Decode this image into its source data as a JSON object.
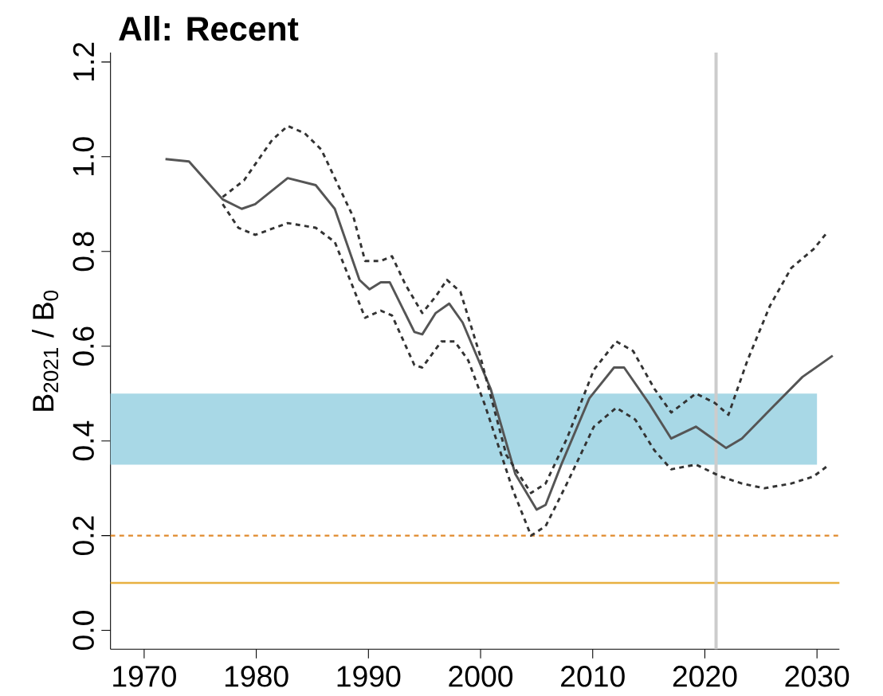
{
  "chart_data": {
    "type": "line",
    "title": "All: Recent",
    "ylabel": "B$_{2021}$ / B$_{0}$",
    "xlim": [
      1967,
      2032
    ],
    "ylim": [
      -0.04,
      1.22
    ],
    "xticks": [
      1970,
      1980,
      1990,
      2000,
      2010,
      2020,
      2030
    ],
    "yticks": [
      {
        "value": 0,
        "label": "0.0"
      },
      {
        "value": 0.2,
        "label": "0.2"
      },
      {
        "value": 0.4,
        "label": "0.4"
      },
      {
        "value": 0.6,
        "label": "0.6"
      },
      {
        "value": 0.8,
        "label": "0.8"
      },
      {
        "value": 1.0,
        "label": "1.0"
      },
      {
        "value": 1.2,
        "label": "1.2"
      }
    ],
    "grid": false,
    "series": [
      {
        "color": "#555555",
        "line_style": "solid",
        "x": [
          1971.9,
          1974,
          1977,
          1978.7,
          1979.9,
          1982.8,
          1985.3,
          1987,
          1989.2,
          1990.1,
          1991.1,
          1991.9,
          1994.1,
          1994.8,
          1996,
          1997.2,
          1998.4,
          2000.9,
          2003.1,
          2005,
          2005.8,
          2007.2,
          2009.7,
          2011.9,
          2012.8,
          2015,
          2017,
          2019.2,
          2020.4,
          2021.9,
          2023.3,
          2026.2,
          2028.7,
          2031.4
        ],
        "values": [
          0.995,
          0.99,
          0.91,
          0.89,
          0.9,
          0.955,
          0.94,
          0.89,
          0.74,
          0.72,
          0.735,
          0.735,
          0.63,
          0.625,
          0.67,
          0.69,
          0.65,
          0.51,
          0.33,
          0.255,
          0.265,
          0.35,
          0.49,
          0.555,
          0.555,
          0.48,
          0.405,
          0.43,
          0.41,
          0.385,
          0.405,
          0.475,
          0.535,
          0.58
        ]
      },
      {
        "color": "#333333",
        "line_style": "dashed",
        "x": [
          1977,
          1978.9,
          1981.4,
          1982.8,
          1984.3,
          1985.8,
          1987,
          1988.7,
          1989.7,
          1991.1,
          1992.1,
          1993.3,
          1994.8,
          1996,
          1997,
          1998.2,
          1999.9,
          2002.3,
          2004.5,
          2005.8,
          2007.7,
          2010.1,
          2012.1,
          2013.6,
          2015.5,
          2017,
          2019.2,
          2020.9,
          2022.1,
          2023.8,
          2025.8,
          2027.7,
          2029.7,
          2030.9
        ],
        "values": [
          0.915,
          0.95,
          1.035,
          1.065,
          1.05,
          1.015,
          0.955,
          0.87,
          0.78,
          0.78,
          0.79,
          0.73,
          0.67,
          0.705,
          0.74,
          0.715,
          0.585,
          0.37,
          0.29,
          0.31,
          0.405,
          0.55,
          0.61,
          0.59,
          0.51,
          0.46,
          0.5,
          0.48,
          0.455,
          0.57,
          0.685,
          0.765,
          0.805,
          0.84
        ]
      },
      {
        "color": "#333333",
        "line_style": "dashed",
        "x": [
          1977,
          1978.4,
          1979.9,
          1982.8,
          1985.3,
          1987,
          1988.7,
          1989.7,
          1991.1,
          1992.1,
          1994.1,
          1994.8,
          1996.5,
          1997.7,
          1998.9,
          2000.4,
          2002.9,
          2004.5,
          2005.8,
          2007.7,
          2010.1,
          2012.1,
          2013.8,
          2015.5,
          2017,
          2019.2,
          2021.4,
          2023.3,
          2025.3,
          2027.7,
          2029.7,
          2031.1
        ],
        "values": [
          0.9,
          0.85,
          0.835,
          0.86,
          0.85,
          0.82,
          0.72,
          0.66,
          0.675,
          0.665,
          0.56,
          0.555,
          0.61,
          0.61,
          0.57,
          0.475,
          0.295,
          0.2,
          0.22,
          0.31,
          0.43,
          0.47,
          0.445,
          0.38,
          0.34,
          0.35,
          0.325,
          0.31,
          0.3,
          0.31,
          0.325,
          0.35
        ]
      }
    ],
    "bands": [
      {
        "axis": "y",
        "from": 0.35,
        "to": 0.5,
        "color": "#a8d8e6"
      }
    ],
    "ref_lines": [
      {
        "axis": "y",
        "value": 0.2,
        "color": "#e08a2c",
        "line_style": "dashed"
      },
      {
        "axis": "y",
        "value": 0.1,
        "color": "#e8b040",
        "line_style": "solid"
      },
      {
        "axis": "x",
        "value": 2021,
        "color": "#cccccc",
        "line_style": "solid"
      }
    ]
  }
}
